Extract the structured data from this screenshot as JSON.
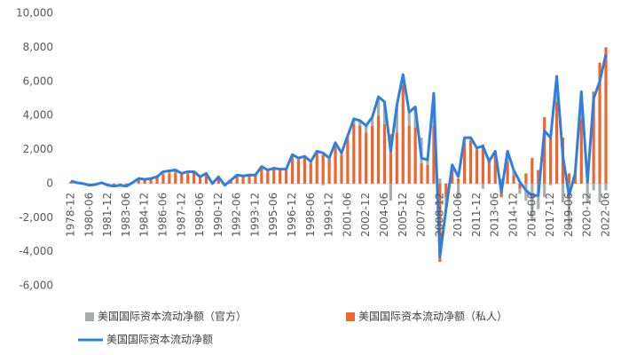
{
  "chart_data": {
    "type": "bar-line",
    "categories": [
      "1978-12",
      null,
      null,
      "1980-06",
      null,
      null,
      "1981-12",
      null,
      null,
      "1983-06",
      null,
      null,
      "1984-12",
      null,
      null,
      "1986-06",
      null,
      null,
      "1987-12",
      null,
      null,
      "1989-06",
      null,
      null,
      "1990-12",
      null,
      null,
      "1992-06",
      null,
      null,
      "1993-12",
      null,
      null,
      "1995-06",
      null,
      null,
      "1996-12",
      null,
      null,
      "1998-06",
      null,
      null,
      "1999-12",
      null,
      null,
      "2001-06",
      null,
      null,
      "2002-12",
      null,
      null,
      "2004-06",
      null,
      null,
      "2005-12",
      null,
      null,
      "2007-06",
      null,
      null,
      "2008-12",
      null,
      null,
      "2010-06",
      null,
      null,
      "2011-12",
      null,
      null,
      "2013-06",
      null,
      null,
      "2014-12",
      null,
      null,
      "2016-06",
      null,
      null,
      "2017-12",
      null,
      null,
      "2019-06",
      null,
      null,
      "2020-12",
      null,
      null,
      "2022-06"
    ],
    "series": [
      {
        "name": "美国国际资本流动净额（官方）",
        "kind": "bar",
        "color": "#a5afae",
        "values": [
          50,
          50,
          50,
          0,
          0,
          0,
          0,
          0,
          0,
          0,
          0,
          50,
          0,
          0,
          0,
          150,
          150,
          150,
          50,
          100,
          50,
          0,
          50,
          0,
          50,
          0,
          0,
          50,
          50,
          50,
          0,
          100,
          50,
          50,
          50,
          50,
          200,
          100,
          100,
          100,
          100,
          -100,
          100,
          200,
          100,
          200,
          300,
          300,
          400,
          500,
          1100,
          1300,
          -1000,
          1600,
          600,
          800,
          1200,
          1500,
          300,
          1900,
          300,
          -700,
          200,
          -800,
          300,
          200,
          100,
          -300,
          0,
          300,
          300,
          600,
          300,
          -300,
          -1000,
          -2200,
          -1500,
          -800,
          -100,
          1500,
          -1100,
          -2600,
          100,
          1600,
          -1100,
          -400,
          -1100,
          -400
        ]
      },
      {
        "name": "美国国际资本流动净额（私人）",
        "kind": "bar",
        "color": "#f0642d",
        "values": [
          100,
          0,
          -50,
          -100,
          -50,
          50,
          -100,
          -150,
          -100,
          -150,
          50,
          250,
          250,
          300,
          400,
          550,
          600,
          650,
          550,
          600,
          650,
          400,
          550,
          0,
          350,
          -100,
          200,
          450,
          400,
          450,
          500,
          900,
          750,
          850,
          800,
          800,
          1500,
          1400,
          1500,
          1200,
          1800,
          1700,
          1400,
          2200,
          1700,
          2600,
          3500,
          3400,
          3000,
          3400,
          4000,
          3500,
          2900,
          3000,
          5800,
          3400,
          3300,
          1200,
          1100,
          3400,
          -4600,
          -800,
          900,
          300,
          2400,
          2500,
          2000,
          2300,
          1300,
          1600,
          -800,
          1300,
          500,
          -300,
          600,
          1500,
          800,
          3900,
          2800,
          4800,
          2700,
          600,
          500,
          3800,
          1200,
          5400,
          7100,
          8000
        ]
      },
      {
        "name": "美国国际资本流动净额",
        "kind": "line",
        "color": "#2f7fe0",
        "values": [
          150,
          50,
          0,
          -100,
          -50,
          50,
          -100,
          -150,
          -100,
          -150,
          50,
          300,
          250,
          300,
          400,
          700,
          750,
          800,
          600,
          700,
          700,
          400,
          600,
          0,
          400,
          -100,
          200,
          500,
          450,
          500,
          500,
          1000,
          800,
          900,
          850,
          850,
          1700,
          1500,
          1600,
          1300,
          1900,
          1800,
          1500,
          2400,
          1800,
          2800,
          3800,
          3700,
          3400,
          3900,
          5100,
          4800,
          1900,
          4600,
          6400,
          4200,
          4500,
          1500,
          1400,
          5300,
          -4300,
          -1500,
          1100,
          400,
          2700,
          2700,
          2100,
          2200,
          1300,
          1900,
          -500,
          1900,
          800,
          100,
          -400,
          -700,
          -700,
          3100,
          2700,
          6300,
          1600,
          -700,
          600,
          5400,
          100,
          5000,
          6000,
          7600
        ]
      }
    ],
    "ylim": [
      -6000,
      10000
    ],
    "yticks": [
      {
        "value": -6000,
        "label": "-6,000"
      },
      {
        "value": -4000,
        "label": "-4,000"
      },
      {
        "value": -2000,
        "label": "-2,000"
      },
      0,
      {
        "value": 2000,
        "label": "2,000"
      },
      {
        "value": 4000,
        "label": "4,000"
      },
      {
        "value": 6000,
        "label": "6,000"
      },
      {
        "value": 8000,
        "label": "8,000"
      },
      {
        "value": 10000,
        "label": "10,000"
      }
    ],
    "grid": false
  }
}
